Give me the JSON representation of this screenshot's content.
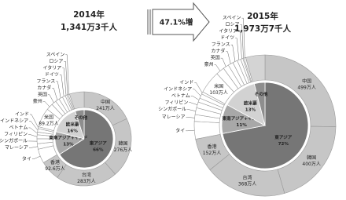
{
  "arrow_label": "47.1%増",
  "chart_data": [
    {
      "type": "nested_pie",
      "title": "2014年",
      "subtitle": "1,341万3千人",
      "inner": {
        "categories": [
          "東アジア",
          "東南アジア+インド",
          "欧米豪",
          "その他"
        ],
        "values": [
          66,
          13,
          16,
          5
        ],
        "value_labels": [
          "66%",
          "13%",
          "16%",
          null
        ],
        "colors": [
          "#767676",
          "#a8a8a8",
          "#d2d2d2",
          "#8e8e8e"
        ]
      },
      "outer": {
        "categories": [
          "中国",
          "韓国",
          "台湾",
          "香港",
          "タイ",
          "マレーシア",
          "シンガポール",
          "フィリピン",
          "ベトナム",
          "インドネシア",
          "インド",
          "米国",
          "豪州",
          "英国",
          "カナダ",
          "フランス",
          "ドイツ",
          "イタリア",
          "ロシア",
          "スペイン",
          null
        ],
        "values": [
          241,
          276,
          283,
          92.6,
          65.8,
          25,
          22.8,
          18.4,
          12.4,
          15.9,
          8.8,
          89.2,
          30.3,
          22,
          18.3,
          17.9,
          14,
          8.1,
          6.4,
          6.1,
          67.3
        ],
        "value_labels": [
          "241万人",
          "276万人",
          "283万人",
          "92.6万人",
          null,
          null,
          null,
          null,
          null,
          null,
          null,
          "89.2万人",
          null,
          null,
          null,
          null,
          null,
          null,
          null,
          null,
          null
        ],
        "colors": [
          "#c6c6c6",
          "#c6c6c6",
          "#c6c6c6",
          "#c6c6c6",
          "#ffffff",
          "#ffffff",
          "#ffffff",
          "#ffffff",
          "#ffffff",
          "#ffffff",
          "#ffffff",
          "#ffffff",
          "#ffffff",
          "#ffffff",
          "#ffffff",
          "#ffffff",
          "#ffffff",
          "#ffffff",
          "#ffffff",
          "#ffffff",
          "#d4d4d4"
        ]
      }
    },
    {
      "type": "nested_pie",
      "title": "2015年",
      "subtitle": "1,973万7千人",
      "inner": {
        "categories": [
          "東アジア",
          "東南アジア+インド",
          "欧米豪",
          "その他"
        ],
        "values": [
          72,
          11,
          13,
          4
        ],
        "value_labels": [
          "72%",
          "11%",
          "13%",
          null
        ],
        "colors": [
          "#767676",
          "#a8a8a8",
          "#d2d2d2",
          "#8e8e8e"
        ]
      },
      "outer": {
        "categories": [
          "中国",
          "韓国",
          "台湾",
          "香港",
          "タイ",
          "マレーシア",
          "シンガポール",
          "フィリピン",
          "ベトナム",
          "インドネシア",
          "インド",
          "米国",
          "豪州",
          "英国",
          "カナダ",
          "フランス",
          "ドイツ",
          "イタリア",
          "ロシア",
          "スペイン",
          null
        ],
        "values": [
          499,
          400,
          368,
          152,
          79.7,
          30.5,
          30.9,
          26.8,
          18.5,
          20.5,
          10.3,
          103,
          37.6,
          25.8,
          23.1,
          21.4,
          16.3,
          10.3,
          5.4,
          7.7,
          86.9
        ],
        "value_labels": [
          "499万人",
          "400万人",
          "368万人",
          "152万人",
          null,
          null,
          null,
          null,
          null,
          null,
          null,
          "103万人",
          null,
          null,
          null,
          null,
          null,
          null,
          null,
          null,
          null
        ],
        "colors": [
          "#c6c6c6",
          "#c6c6c6",
          "#c6c6c6",
          "#c6c6c6",
          "#ffffff",
          "#ffffff",
          "#ffffff",
          "#ffffff",
          "#ffffff",
          "#ffffff",
          "#ffffff",
          "#ffffff",
          "#ffffff",
          "#ffffff",
          "#ffffff",
          "#ffffff",
          "#ffffff",
          "#ffffff",
          "#ffffff",
          "#ffffff",
          "#d4d4d4"
        ]
      }
    }
  ]
}
